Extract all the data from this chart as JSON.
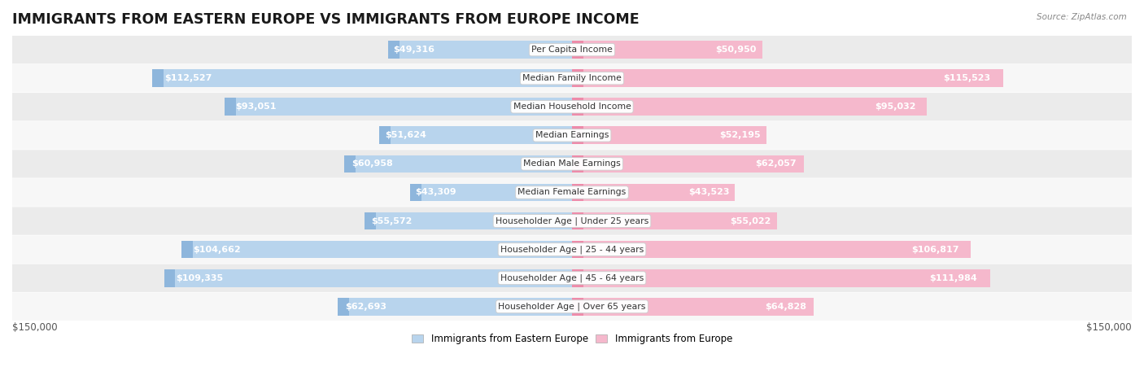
{
  "title": "IMMIGRANTS FROM EASTERN EUROPE VS IMMIGRANTS FROM EUROPE INCOME",
  "source": "Source: ZipAtlas.com",
  "categories": [
    "Per Capita Income",
    "Median Family Income",
    "Median Household Income",
    "Median Earnings",
    "Median Male Earnings",
    "Median Female Earnings",
    "Householder Age | Under 25 years",
    "Householder Age | 25 - 44 years",
    "Householder Age | 45 - 64 years",
    "Householder Age | Over 65 years"
  ],
  "left_values": [
    49316,
    112527,
    93051,
    51624,
    60958,
    43309,
    55572,
    104662,
    109335,
    62693
  ],
  "right_values": [
    50950,
    115523,
    95032,
    52195,
    62057,
    43523,
    55022,
    106817,
    111984,
    64828
  ],
  "left_labels": [
    "$49,316",
    "$112,527",
    "$93,051",
    "$51,624",
    "$60,958",
    "$43,309",
    "$55,572",
    "$104,662",
    "$109,335",
    "$62,693"
  ],
  "right_labels": [
    "$50,950",
    "$115,523",
    "$95,032",
    "$52,195",
    "$62,057",
    "$43,523",
    "$55,022",
    "$106,817",
    "$111,984",
    "$64,828"
  ],
  "max_value": 150000,
  "left_color_light": "#b8d4ed",
  "left_color_dark": "#6699cc",
  "right_color_light": "#f5b8cc",
  "right_color_dark": "#e8608a",
  "left_legend": "Immigrants from Eastern Europe",
  "right_legend": "Immigrants from Europe",
  "row_bg_odd": "#ebebeb",
  "row_bg_even": "#f7f7f7",
  "label_color_inside": "#ffffff",
  "label_color_outside": "#555555",
  "title_fontsize": 12.5,
  "bar_height": 0.62,
  "xlabel_left": "$150,000",
  "xlabel_right": "$150,000",
  "inside_threshold": 0.22
}
